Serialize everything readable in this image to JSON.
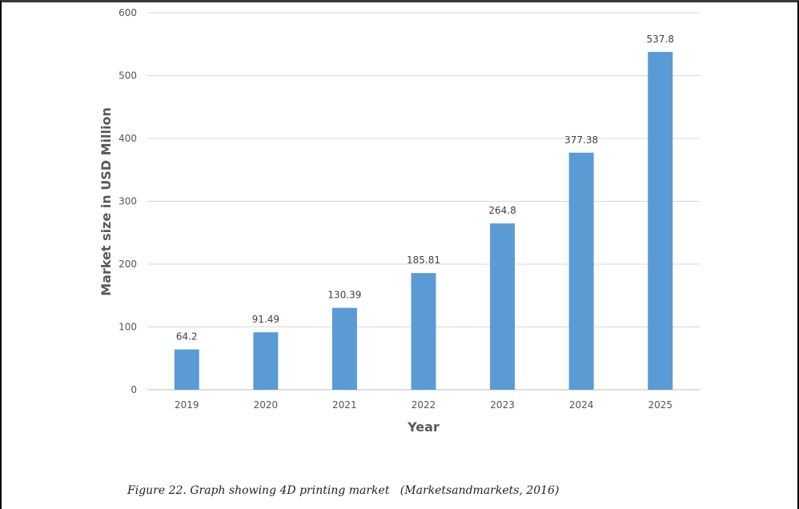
{
  "chart_data": {
    "type": "bar",
    "categories": [
      "2019",
      "2020",
      "2021",
      "2022",
      "2023",
      "2024",
      "2025"
    ],
    "values": [
      64.2,
      91.49,
      130.39,
      185.81,
      264.8,
      377.38,
      537.8
    ],
    "data_labels": [
      "64.2",
      "91.49",
      "130.39",
      "185.81",
      "264.8",
      "377.38",
      "537.8"
    ],
    "title": "",
    "xlabel": "Year",
    "ylabel": "Market size in USD Million",
    "ylim": [
      0,
      600
    ],
    "yticks": [
      0,
      100,
      200,
      300,
      400,
      500,
      600
    ],
    "grid": true,
    "legend": "none",
    "bar_color": "#5b9bd5"
  },
  "caption": "Figure 22. Graph showing 4D printing market   (Marketsandmarkets, 2016)"
}
